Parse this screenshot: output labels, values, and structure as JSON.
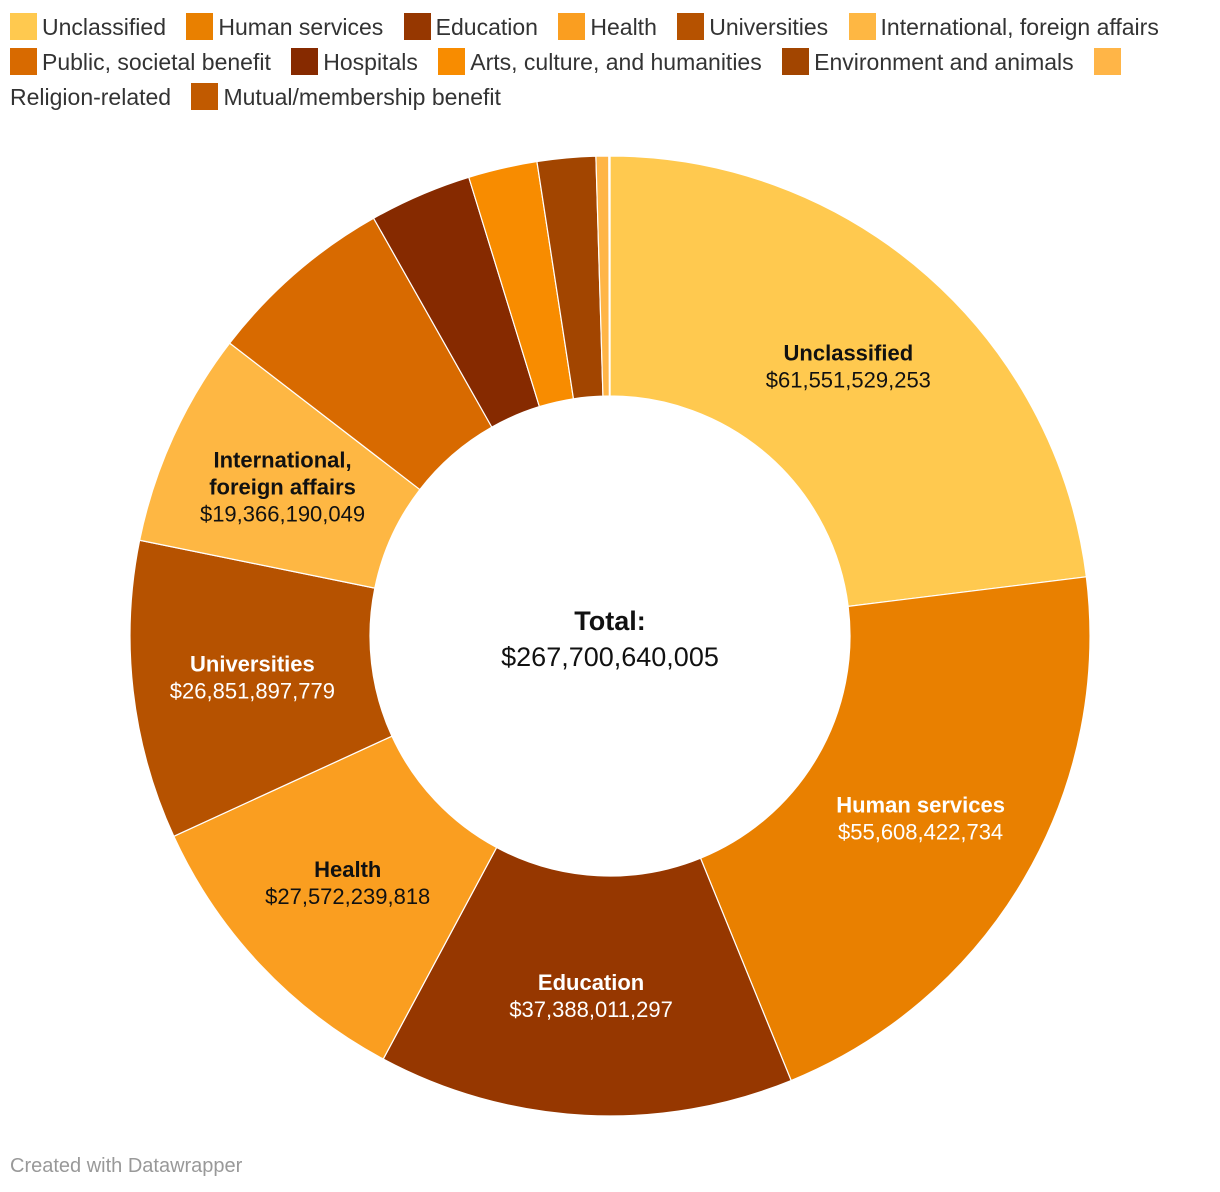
{
  "chart_data": {
    "type": "pie",
    "variant": "donut",
    "total_label": "Total:",
    "total_value": "$267,700,640,005",
    "slices": [
      {
        "name": "Unclassified",
        "value": 61551529253,
        "value_label": "$61,551,529,253",
        "color": "#FFC94F",
        "label_color": "#111111",
        "show_label": true,
        "label_lines": [
          "Unclassified"
        ]
      },
      {
        "name": "Human services",
        "value": 55608422734,
        "value_label": "$55,608,422,734",
        "color": "#E98000",
        "label_color": "#FFFFFF",
        "show_label": true,
        "label_lines": [
          "Human services"
        ]
      },
      {
        "name": "Education",
        "value": 37388011297,
        "value_label": "$37,388,011,297",
        "color": "#963700",
        "label_color": "#FFFFFF",
        "show_label": true,
        "label_lines": [
          "Education"
        ]
      },
      {
        "name": "Health",
        "value": 27572239818,
        "value_label": "$27,572,239,818",
        "color": "#FA9E20",
        "label_color": "#111111",
        "show_label": true,
        "label_lines": [
          "Health"
        ]
      },
      {
        "name": "Universities",
        "value": 26851897779,
        "value_label": "$26,851,897,779",
        "color": "#B65200",
        "label_color": "#FFFFFF",
        "show_label": true,
        "label_lines": [
          "Universities"
        ]
      },
      {
        "name": "International, foreign affairs",
        "value": 19366190049,
        "value_label": "$19,366,190,049",
        "color": "#FEB743",
        "label_color": "#111111",
        "show_label": true,
        "label_lines": [
          "International,",
          "foreign affairs"
        ]
      },
      {
        "name": "Public, societal benefit",
        "value": 17000000000,
        "value_label": "",
        "color": "#D86A00",
        "label_color": "#FFFFFF",
        "show_label": false,
        "label_lines": []
      },
      {
        "name": "Hospitals",
        "value": 9200000000,
        "value_label": "",
        "color": "#862A00",
        "label_color": "#FFFFFF",
        "show_label": false,
        "label_lines": []
      },
      {
        "name": "Arts, culture, and humanities",
        "value": 6200000000,
        "value_label": "",
        "color": "#F88C00",
        "label_color": "#FFFFFF",
        "show_label": false,
        "label_lines": []
      },
      {
        "name": "Environment and animals",
        "value": 5250000000,
        "value_label": "",
        "color": "#A24500",
        "label_color": "#FFFFFF",
        "show_label": false,
        "label_lines": []
      },
      {
        "name": "Religion-related",
        "value": 1150000000,
        "value_label": "",
        "color": "#FFB547",
        "label_color": "#111111",
        "show_label": false,
        "label_lines": []
      },
      {
        "name": "Mutual/membership benefit",
        "value": 100000000,
        "value_label": "",
        "color": "#C15A00",
        "label_color": "#FFFFFF",
        "show_label": false,
        "label_lines": []
      }
    ]
  },
  "footer": {
    "credit": "Created with Datawrapper"
  }
}
